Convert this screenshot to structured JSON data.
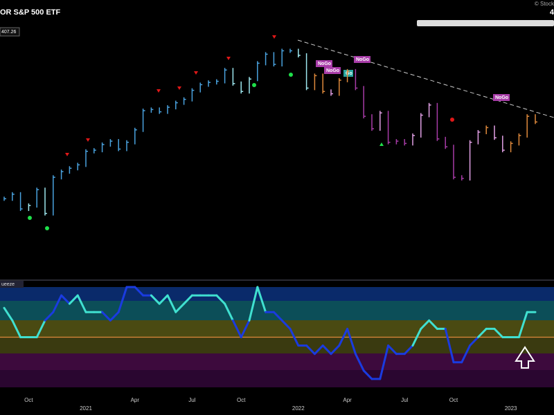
{
  "chart_data": [
    {
      "type": "price-bars",
      "title": "OR S&P 500 ETF",
      "credit": "© Stock",
      "corner_label": "4",
      "last_price": 407.26,
      "annotations": [
        "NoGo",
        "NoGo",
        "NoGo",
        "Go",
        "NoGo"
      ],
      "categories": [
        null,
        null,
        null,
        "Oct",
        null,
        null,
        null,
        null,
        null,
        null,
        "2021",
        null,
        null,
        null,
        null,
        null,
        "Apr",
        null,
        null,
        null,
        null,
        null,
        null,
        "Jul",
        null,
        null,
        null,
        null,
        null,
        "Oct",
        null,
        null,
        null,
        null,
        null,
        null,
        "2022",
        null,
        null,
        null,
        null,
        null,
        "Apr",
        null,
        null,
        null,
        null,
        null,
        null,
        "Jul",
        null,
        null,
        null,
        null,
        null,
        "Oct",
        null,
        null,
        null,
        null,
        null,
        null,
        "2023",
        null,
        null,
        null
      ],
      "values": [
        339,
        343,
        330,
        333,
        347,
        326,
        358,
        363,
        366,
        369,
        381,
        382,
        387,
        390,
        383,
        389,
        400,
        417,
        418,
        416,
        420,
        424,
        427,
        435,
        440,
        442,
        443,
        453,
        441,
        434,
        445,
        459,
        467,
        458,
        470,
        470,
        466,
        437,
        448,
        434,
        432,
        444,
        452,
        437,
        412,
        401,
        415,
        389,
        390,
        388,
        395,
        413,
        422,
        392,
        385,
        358,
        357,
        389,
        398,
        402,
        393,
        382,
        388,
        395,
        412,
        407
      ],
      "colors": [
        "#4aa3df",
        "#4aa3df",
        "#4aa3df",
        "#9ee8f0",
        "#4aa3df",
        "#9ee8f0",
        "#4aa3df",
        "#4aa3df",
        "#4aa3df",
        "#4aa3df",
        "#4aa3df",
        "#4aa3df",
        "#4aa3df",
        "#4aa3df",
        "#4aa3df",
        "#4aa3df",
        "#4aa3df",
        "#4aa3df",
        "#4aa3df",
        "#4aa3df",
        "#4aa3df",
        "#4aa3df",
        "#4aa3df",
        "#4aa3df",
        "#4aa3df",
        "#4aa3df",
        "#4aa3df",
        "#4aa3df",
        "#9ee8f0",
        "#9ee8f0",
        "#9ee8f0",
        "#4aa3df",
        "#4aa3df",
        "#4aa3df",
        "#4aa3df",
        "#4aa3df",
        "#9ee8f0",
        "#9ee8f0",
        "#e08a3c",
        "#e08a3c",
        "#e2a0e6",
        "#e08a3c",
        "#e08a3c",
        "#a83ca8",
        "#a83ca8",
        "#a83ca8",
        "#e2a0e6",
        "#a83ca8",
        "#a83ca8",
        "#a83ca8",
        "#e2a0e6",
        "#e2a0e6",
        "#e2a0e6",
        "#a83ca8",
        "#a83ca8",
        "#a83ca8",
        "#a83ca8",
        "#e2a0e6",
        "#e2a0e6",
        "#e08a3c",
        "#e2a0e6",
        "#e2a0e6",
        "#e08a3c",
        "#e08a3c",
        "#e08a3c",
        "#e08a3c"
      ],
      "ylim": [
        270,
        515
      ]
    },
    {
      "type": "oscillator",
      "title": "ueeze",
      "values": [
        3.5,
        2,
        0,
        0,
        0,
        2,
        3,
        5,
        4,
        5,
        3,
        3,
        3,
        2,
        3,
        6,
        6,
        5,
        5,
        4,
        5,
        3,
        4,
        5,
        5,
        5,
        5,
        4,
        2,
        0,
        2,
        6,
        3,
        3,
        2,
        1,
        -1,
        -1,
        -2,
        -1,
        -2,
        -1,
        1,
        -2,
        -4,
        -5,
        -5,
        -1,
        -2,
        -2,
        -1,
        1,
        2,
        1,
        1,
        -3,
        -3,
        -1,
        0,
        1,
        1,
        0,
        0,
        0,
        3,
        3
      ],
      "colors": [
        "#40e0d0",
        "#40e0d0",
        "#40e0d0",
        "#40e0d0",
        "#40e0d0",
        "#40e0d0",
        "#1a3be0",
        "#1a3be0",
        "#1a3be0",
        "#40e0d0",
        "#40e0d0",
        "#40e0d0",
        "#40e0d0",
        "#1a3be0",
        "#1a3be0",
        "#1a3be0",
        "#1a3be0",
        "#1a3be0",
        "#1a3be0",
        "#40e0d0",
        "#40e0d0",
        "#40e0d0",
        "#40e0d0",
        "#40e0d0",
        "#40e0d0",
        "#40e0d0",
        "#40e0d0",
        "#40e0d0",
        "#40e0d0",
        "#1a3be0",
        "#1a3be0",
        "#40e0d0",
        "#40e0d0",
        "#1a3be0",
        "#1a3be0",
        "#1a3be0",
        "#1a3be0",
        "#1a3be0",
        "#1a3be0",
        "#1a3be0",
        "#1a3be0",
        "#1a3be0",
        "#1a3be0",
        "#1a3be0",
        "#1a3be0",
        "#1a3be0",
        "#1a3be0",
        "#1a3be0",
        "#1a3be0",
        "#1a3be0",
        "#1a3be0",
        "#40e0d0",
        "#40e0d0",
        "#40e0d0",
        "#40e0d0",
        "#1a3be0",
        "#1a3be0",
        "#1a3be0",
        "#1a3be0",
        "#40e0d0",
        "#40e0d0",
        "#40e0d0",
        "#40e0d0",
        "#40e0d0",
        "#40e0d0",
        "#40e0d0"
      ],
      "ylim": [
        -6,
        6
      ]
    }
  ]
}
